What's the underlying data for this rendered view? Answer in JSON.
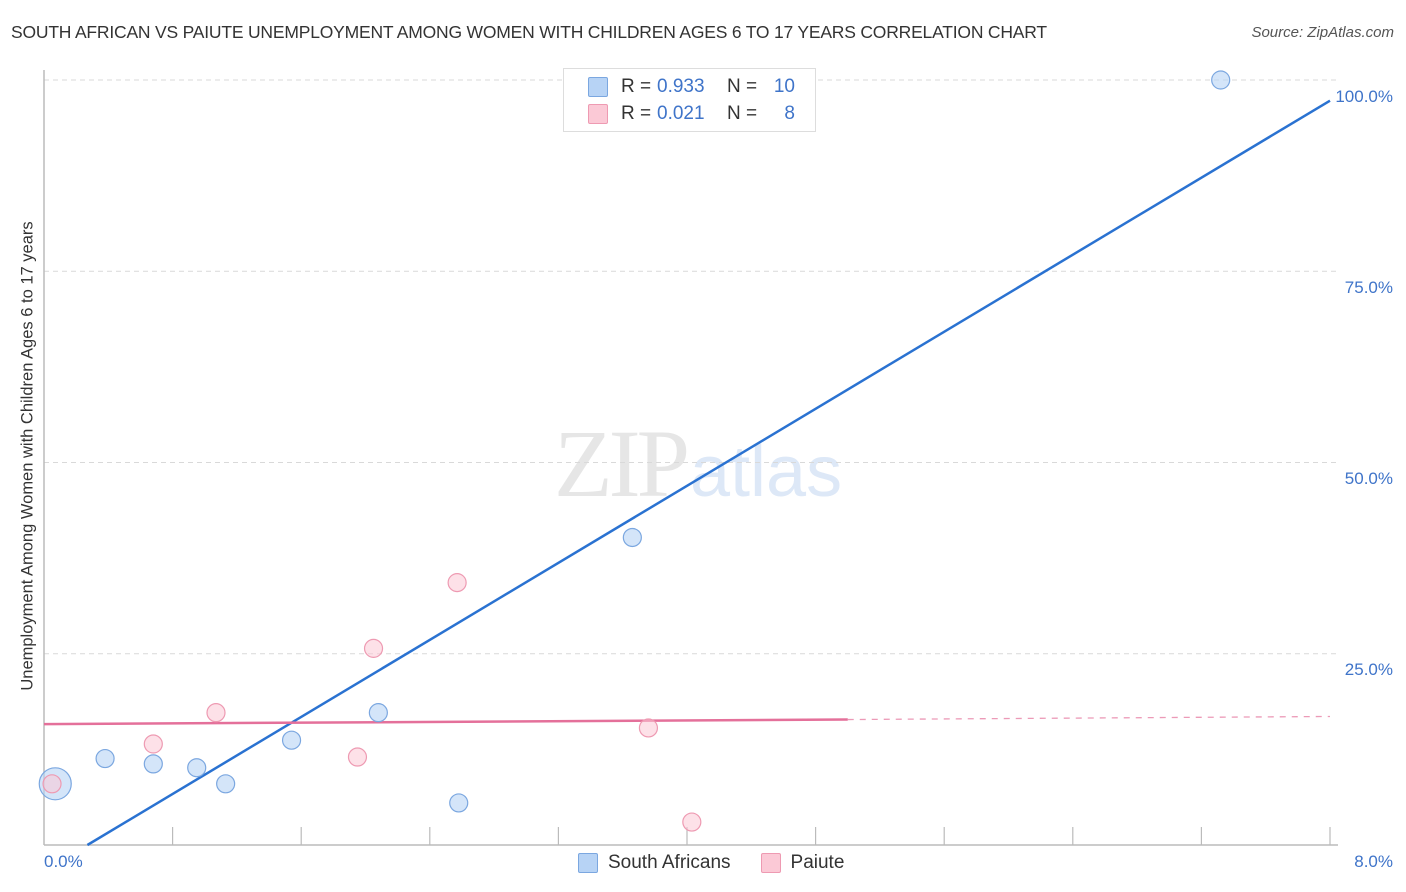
{
  "header": {
    "title": "SOUTH AFRICAN VS PAIUTE UNEMPLOYMENT AMONG WOMEN WITH CHILDREN AGES 6 TO 17 YEARS CORRELATION CHART",
    "source": "Source: ZipAtlas.com"
  },
  "watermark": {
    "zip": "ZIP",
    "atlas": "atlas"
  },
  "legend_top": {
    "rows": [
      {
        "series": "South Africans",
        "r_label": "R =",
        "r_value": "0.933",
        "n_label": "N =",
        "n_value": "10",
        "color": "#b7d3f5",
        "border": "#7ba7e0"
      },
      {
        "series": "Paiute",
        "r_label": "R =",
        "r_value": "0.021",
        "n_label": "N =",
        "n_value": "8",
        "color": "#fbc9d6",
        "border": "#ee9ab2"
      }
    ]
  },
  "legend_bottom": {
    "items": [
      {
        "label": "South Africans",
        "color": "#b7d3f5",
        "border": "#7ba7e0"
      },
      {
        "label": "Paiute",
        "color": "#fbc9d6",
        "border": "#ee9ab2"
      }
    ]
  },
  "axes": {
    "y_label": "Unemployment Among Women with Children Ages 6 to 17 years",
    "y_ticks": [
      "100.0%",
      "75.0%",
      "50.0%",
      "25.0%"
    ],
    "x_ticks": [
      "0.0%",
      "8.0%"
    ]
  },
  "colors": {
    "south_africans_line": "#2a72d1",
    "paiute_line": "#e4709a",
    "axis_text": "#3f74c9",
    "grid": "#d9d9d9"
  },
  "chart_data": {
    "type": "scatter",
    "title": "SOUTH AFRICAN VS PAIUTE UNEMPLOYMENT AMONG WOMEN WITH CHILDREN AGES 6 TO 17 YEARS CORRELATION CHART",
    "xlabel": "",
    "ylabel": "Unemployment Among Women with Children Ages 6 to 17 years",
    "xlim": [
      0,
      8
    ],
    "ylim": [
      0,
      100
    ],
    "x_unit": "%",
    "y_unit": "%",
    "grid": {
      "horizontal": true,
      "style": "dashed",
      "y_values": [
        25,
        50,
        75,
        100
      ]
    },
    "x_tick_labels": [
      "0.0%",
      "8.0%"
    ],
    "y_tick_labels": [
      "25.0%",
      "50.0%",
      "75.0%",
      "100.0%"
    ],
    "legend_position": "top-center and bottom-center",
    "series": [
      {
        "name": "South Africans",
        "R": 0.933,
        "N": 10,
        "color": "#b7d3f5",
        "points": [
          {
            "x": 0.07,
            "y": 8.0,
            "size": "large"
          },
          {
            "x": 0.38,
            "y": 11.3
          },
          {
            "x": 0.68,
            "y": 10.6
          },
          {
            "x": 0.95,
            "y": 10.1
          },
          {
            "x": 1.13,
            "y": 8.0
          },
          {
            "x": 1.54,
            "y": 13.7
          },
          {
            "x": 2.08,
            "y": 17.3
          },
          {
            "x": 2.58,
            "y": 5.5
          },
          {
            "x": 3.66,
            "y": 40.2
          },
          {
            "x": 7.32,
            "y": 100.0
          }
        ],
        "trendline": {
          "x": [
            0.27,
            8.0
          ],
          "y": [
            0.0,
            97.3
          ],
          "style": "solid"
        }
      },
      {
        "name": "Paiute",
        "R": 0.021,
        "N": 8,
        "color": "#fbc9d6",
        "points": [
          {
            "x": 0.05,
            "y": 8.0
          },
          {
            "x": 0.68,
            "y": 13.2
          },
          {
            "x": 1.07,
            "y": 17.3
          },
          {
            "x": 1.95,
            "y": 11.5
          },
          {
            "x": 2.05,
            "y": 25.7
          },
          {
            "x": 2.57,
            "y": 34.3
          },
          {
            "x": 3.76,
            "y": 15.3
          },
          {
            "x": 4.03,
            "y": 3.0
          }
        ],
        "trendline": {
          "x": [
            0.0,
            5.0,
            8.0
          ],
          "y": [
            15.8,
            16.4,
            16.8
          ],
          "style": "solid then dashed after x=5.0"
        }
      }
    ]
  }
}
